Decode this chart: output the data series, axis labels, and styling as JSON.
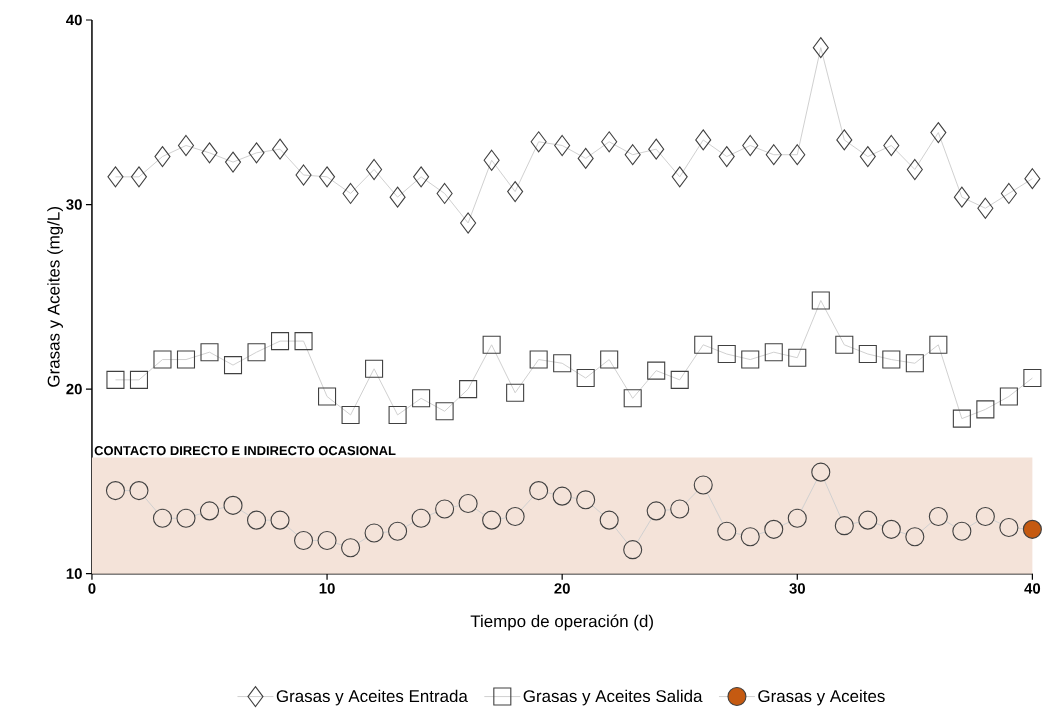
{
  "chart_data": {
    "type": "line",
    "xlabel": "Tiempo de operación (d)",
    "ylabel": "Grasas y Aceites (mg/L)",
    "x": [
      1,
      2,
      3,
      4,
      5,
      6,
      7,
      8,
      9,
      10,
      11,
      12,
      13,
      14,
      15,
      16,
      17,
      18,
      19,
      20,
      21,
      22,
      23,
      24,
      25,
      26,
      27,
      28,
      29,
      30,
      31,
      32,
      33,
      34,
      35,
      36,
      37,
      38,
      39,
      40
    ],
    "series": [
      {
        "name": "Grasas y Aceites Entrada",
        "color": "#d0d0d0",
        "marker": "diamond",
        "values": [
          31.5,
          31.5,
          32.6,
          33.2,
          32.8,
          32.3,
          32.8,
          33.0,
          31.6,
          31.5,
          30.6,
          31.9,
          30.4,
          31.5,
          30.6,
          29.0,
          32.4,
          30.7,
          33.4,
          33.2,
          32.5,
          33.4,
          32.7,
          33.0,
          31.5,
          33.5,
          32.6,
          33.2,
          32.7,
          32.7,
          38.5,
          33.5,
          32.6,
          33.2,
          31.9,
          33.9,
          30.4,
          29.8,
          30.6,
          31.4
        ]
      },
      {
        "name": "Grasas y Aceites Salida",
        "color": "#d0d0d0",
        "marker": "square",
        "values": [
          20.5,
          20.5,
          21.6,
          21.6,
          22.0,
          21.3,
          22.0,
          22.6,
          22.6,
          19.6,
          18.6,
          21.1,
          18.6,
          19.5,
          18.8,
          20.0,
          22.4,
          19.8,
          21.6,
          21.4,
          20.6,
          21.6,
          19.5,
          21.0,
          20.5,
          22.4,
          21.9,
          21.6,
          22.0,
          21.7,
          24.8,
          22.4,
          21.9,
          21.6,
          21.4,
          22.4,
          18.4,
          18.9,
          19.6,
          20.6
        ]
      },
      {
        "name": "Grasas y Aceites",
        "color": "#d0d0d0",
        "marker": "circle",
        "values": [
          14.5,
          14.5,
          13.0,
          13.0,
          13.4,
          13.7,
          12.9,
          12.9,
          11.8,
          11.8,
          11.4,
          12.2,
          12.3,
          13.0,
          13.5,
          13.8,
          12.9,
          13.1,
          14.5,
          14.2,
          14.0,
          12.9,
          11.3,
          13.4,
          13.5,
          14.8,
          12.3,
          12.0,
          12.4,
          13.0,
          15.5,
          12.6,
          12.9,
          12.4,
          12.0,
          13.1,
          12.3,
          13.1,
          12.5,
          12.4
        ],
        "colors": [
          "#f4e3d9",
          "#f4e3d9",
          "#f4e3d9",
          "#f4e3d9",
          "#f4e3d9",
          "#f4e3d9",
          "#f4e3d9",
          "#f4e3d9",
          "#f4e3d9",
          "#f4e3d9",
          "#f4e3d9",
          "#f4e3d9",
          "#f4e3d9",
          "#f4e3d9",
          "#f4e3d9",
          "#f4e3d9",
          "#f4e3d9",
          "#f4e3d9",
          "#f4e3d9",
          "#f4e3d9",
          "#f4e3d9",
          "#f4e3d9",
          "#f4e3d9",
          "#f4e3d9",
          "#f4e3d9",
          "#f4e3d9",
          "#f4e3d9",
          "#f4e3d9",
          "#f4e3d9",
          "#f4e3d9",
          "#f4e3d9",
          "#f4e3d9",
          "#f4e3d9",
          "#f4e3d9",
          "#f4e3d9",
          "#f4e3d9",
          "#f4e3d9",
          "#f4e3d9",
          "#f4e3d9",
          "#c55a11"
        ]
      }
    ],
    "bands": [
      {
        "axis": "y",
        "from": 10,
        "to": 16.3,
        "label": "CONTACTO DIRECTO E INDIRECTO  OCASIONAL",
        "color": "#f4e3d9"
      }
    ],
    "xlim": [
      0,
      40
    ],
    "ylim": [
      10,
      40
    ],
    "xticks": [
      0,
      10,
      20,
      30,
      40
    ],
    "yticks": [
      10,
      20,
      30,
      40
    ],
    "grid": false,
    "legend": "bottom"
  }
}
